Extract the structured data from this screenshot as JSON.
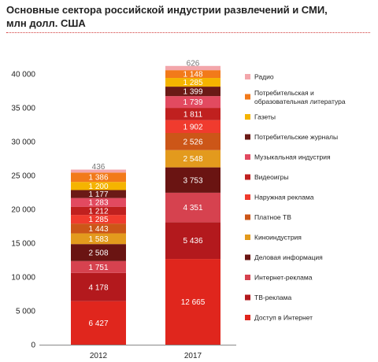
{
  "title": "Основные сектора российской индустрии развлечений и СМИ, млн долл. США",
  "chart_data": {
    "type": "bar",
    "stacked": true,
    "title": "Основные сектора российской индустрии развлечений и СМИ, млн долл. США",
    "categories": [
      "2012",
      "2017"
    ],
    "ylim": [
      0,
      40000
    ],
    "yticks": [
      0,
      5000,
      10000,
      15000,
      20000,
      25000,
      30000,
      35000,
      40000
    ],
    "ytick_labels": [
      "0",
      "5 000",
      "10 000",
      "15 000",
      "20 000",
      "25 000",
      "30 000",
      "35 000",
      "40 000"
    ],
    "grid": false,
    "legend_position": "right",
    "series": [
      {
        "name": "Доступ в Интернет",
        "color": "#e0261d",
        "values": [
          6427,
          12665
        ],
        "labels": [
          "6 427",
          "12 665"
        ]
      },
      {
        "name": "ТВ-реклама",
        "color": "#b3191d",
        "values": [
          4178,
          5436
        ],
        "labels": [
          "4 178",
          "5 436"
        ]
      },
      {
        "name": "Интернет-реклама",
        "color": "#d6424f",
        "values": [
          1751,
          4351
        ],
        "labels": [
          "1 751",
          "4 351"
        ]
      },
      {
        "name": "Деловая информация",
        "color": "#6a1412",
        "values": [
          2508,
          3753
        ],
        "labels": [
          "2 508",
          "3 753"
        ]
      },
      {
        "name": "Киноиндустрия",
        "color": "#e39a1d",
        "values": [
          1583,
          2548
        ],
        "labels": [
          "1 583",
          "2 548"
        ]
      },
      {
        "name": "Платное ТВ",
        "color": "#cc5618",
        "values": [
          1443,
          2526
        ],
        "labels": [
          "1 443",
          "2 526"
        ]
      },
      {
        "name": "Наружная реклама",
        "color": "#f03b2e",
        "values": [
          1285,
          1902
        ],
        "labels": [
          "1 285",
          "1 902"
        ]
      },
      {
        "name": "Видеоигры",
        "color": "#c0201f",
        "values": [
          1212,
          1811
        ],
        "labels": [
          "1 212",
          "1 811"
        ]
      },
      {
        "name": "Музыкальная индустрия",
        "color": "#e24a60",
        "values": [
          1283,
          1739
        ],
        "labels": [
          "1 283",
          "1 739"
        ]
      },
      {
        "name": "Потребительские журналы",
        "color": "#6b1a16",
        "values": [
          1177,
          1399
        ],
        "labels": [
          "1 177",
          "1 399"
        ]
      },
      {
        "name": "Газеты",
        "color": "#f5b400",
        "values": [
          1200,
          1285
        ],
        "labels": [
          "1 200",
          "1 285"
        ]
      },
      {
        "name": "Потребительская и образовательная литература",
        "color": "#f27a1a",
        "values": [
          1386,
          1148
        ],
        "labels": [
          "1 386",
          "1 148"
        ]
      },
      {
        "name": "Радио",
        "color": "#f3a6ab",
        "values": [
          436,
          626
        ],
        "labels": [
          "436",
          "626"
        ]
      }
    ]
  }
}
